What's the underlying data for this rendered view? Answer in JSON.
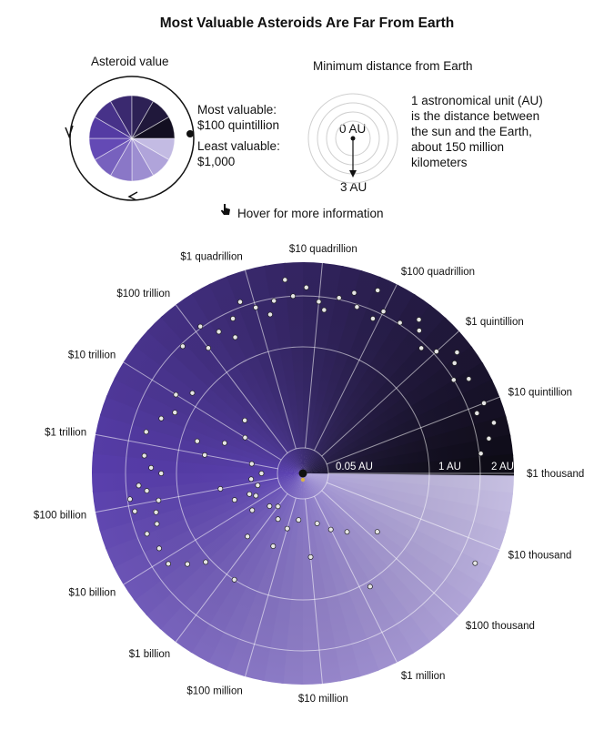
{
  "title": "Most Valuable Asteroids Are Far From Earth",
  "legend": {
    "value_title": "Asteroid value",
    "value_max_line1": "Most valuable:",
    "value_max_line2": "$100 quintillion",
    "value_min_line1": "Least valuable:",
    "value_min_line2": "$1,000",
    "distance_title": "Minimum distance from Earth",
    "distance_inner": "0 AU",
    "distance_outer": "3 AU",
    "au_note": "1 astronomical unit (AU) is the distance between the sun and the Earth, about 150 million kilometers"
  },
  "hover_hint": "Hover for more information",
  "hover_icon": "pointer-hand-icon",
  "colors": {
    "most_valuable": "#0d0b14",
    "mid": "#5a3fb0",
    "least_valuable": "#cdc6e8",
    "point_fill": "#e6e6e6",
    "earth": "#d9b24a"
  },
  "chart_data": {
    "type": "scatter",
    "coordinate_system": "polar",
    "angle_axis": {
      "quantity": "Asteroid value",
      "scale": "log",
      "tick_labels": [
        "$1 thousand",
        "$10 thousand",
        "$100 thousand",
        "$1 million",
        "$10 million",
        "$100 million",
        "$1 billion",
        "$10 billion",
        "$100 billion",
        "$1 trillion",
        "$10 trillion",
        "$100 trillion",
        "$1 quadrillion",
        "$10 quadrillion",
        "$100 quadrillion",
        "$1 quintillion",
        "$10 quintillion"
      ]
    },
    "radial_axis": {
      "quantity": "Minimum distance from Earth",
      "tick_labels": [
        "0.05 AU",
        "1 AU",
        "2 AU"
      ]
    },
    "grid": true,
    "points": [
      {
        "value_log10": 10.3,
        "distance_au": 0.3
      },
      {
        "value_log10": 10.5,
        "distance_au": 0.35
      },
      {
        "value_log10": 10.8,
        "distance_au": 0.25
      },
      {
        "value_log10": 11.2,
        "distance_au": 0.3
      },
      {
        "value_log10": 11.5,
        "distance_au": 0.2
      },
      {
        "value_log10": 12.0,
        "distance_au": 0.3
      },
      {
        "value_log10": 10.5,
        "distance_au": 0.5
      },
      {
        "value_log10": 11.0,
        "distance_au": 0.6
      },
      {
        "value_log10": 13.0,
        "distance_au": 0.45
      },
      {
        "value_log10": 12.5,
        "distance_au": 0.6
      },
      {
        "value_log10": 12.3,
        "distance_au": 0.85
      },
      {
        "value_log10": 12.0,
        "distance_au": 0.75
      },
      {
        "value_log10": 13.5,
        "distance_au": 0.55
      },
      {
        "value_log10": 11.0,
        "distance_au": 1.4
      },
      {
        "value_log10": 11.2,
        "distance_au": 1.6
      },
      {
        "value_log10": 10.8,
        "distance_au": 1.5
      },
      {
        "value_log10": 11.5,
        "distance_au": 1.3
      },
      {
        "value_log10": 10.5,
        "distance_au": 1.8
      },
      {
        "value_log10": 10.9,
        "distance_au": 1.9
      },
      {
        "value_log10": 11.3,
        "distance_au": 1.75
      },
      {
        "value_log10": 11.6,
        "distance_au": 1.5
      },
      {
        "value_log10": 10.2,
        "distance_au": 1.7
      },
      {
        "value_log10": 11.8,
        "distance_au": 1.65
      },
      {
        "value_log10": 10.6,
        "distance_au": 1.55
      },
      {
        "value_log10": 11.1,
        "distance_au": 1.95
      },
      {
        "value_log10": 12.2,
        "distance_au": 1.7
      },
      {
        "value_log10": 12.5,
        "distance_au": 1.5
      },
      {
        "value_log10": 12.7,
        "distance_au": 1.3
      },
      {
        "value_log10": 13.0,
        "distance_au": 1.45
      },
      {
        "value_log10": 13.2,
        "distance_au": 1.2
      },
      {
        "value_log10": 14.0,
        "distance_au": 1.6
      },
      {
        "value_log10": 14.3,
        "distance_au": 1.75
      },
      {
        "value_log10": 14.6,
        "distance_au": 1.85
      },
      {
        "value_log10": 15.0,
        "distance_au": 1.9
      },
      {
        "value_log10": 15.3,
        "distance_au": 1.95
      },
      {
        "value_log10": 15.6,
        "distance_au": 2.0
      },
      {
        "value_log10": 16.0,
        "distance_au": 1.9
      },
      {
        "value_log10": 16.3,
        "distance_au": 2.05
      },
      {
        "value_log10": 16.6,
        "distance_au": 1.95
      },
      {
        "value_log10": 17.0,
        "distance_au": 2.1
      },
      {
        "value_log10": 17.3,
        "distance_au": 2.05
      },
      {
        "value_log10": 17.6,
        "distance_au": 2.2
      },
      {
        "value_log10": 18.0,
        "distance_au": 2.1
      },
      {
        "value_log10": 18.3,
        "distance_au": 2.3
      },
      {
        "value_log10": 18.6,
        "distance_au": 2.4
      },
      {
        "value_log10": 19.0,
        "distance_au": 2.5
      },
      {
        "value_log10": 19.3,
        "distance_au": 2.6
      },
      {
        "value_log10": 14.5,
        "distance_au": 1.5
      },
      {
        "value_log10": 15.2,
        "distance_au": 1.7
      },
      {
        "value_log10": 16.1,
        "distance_au": 1.75
      },
      {
        "value_log10": 16.9,
        "distance_au": 1.85
      },
      {
        "value_log10": 17.8,
        "distance_au": 1.9
      },
      {
        "value_log10": 18.5,
        "distance_au": 2.0
      },
      {
        "value_log10": 19.1,
        "distance_au": 2.2
      },
      {
        "value_log10": 19.5,
        "distance_au": 2.35
      },
      {
        "value_log10": 14.8,
        "distance_au": 2.15
      },
      {
        "value_log10": 15.8,
        "distance_au": 2.25
      },
      {
        "value_log10": 16.5,
        "distance_au": 2.3
      },
      {
        "value_log10": 17.5,
        "distance_au": 2.45
      },
      {
        "value_log10": 18.2,
        "distance_au": 2.55
      },
      {
        "value_log10": 15.5,
        "distance_au": 2.5
      },
      {
        "value_log10": 16.8,
        "distance_au": 2.6
      },
      {
        "value_log10": 13.7,
        "distance_au": 1.95
      },
      {
        "value_log10": 14.1,
        "distance_au": 2.05
      },
      {
        "value_log10": 19.7,
        "distance_au": 2.05
      },
      {
        "value_log10": 6.0,
        "distance_au": 0.4
      },
      {
        "value_log10": 5.5,
        "distance_au": 0.5
      },
      {
        "value_log10": 6.5,
        "distance_au": 0.3
      },
      {
        "value_log10": 4.8,
        "distance_au": 0.7
      },
      {
        "value_log10": 5.8,
        "distance_au": 1.1
      },
      {
        "value_log10": 4.3,
        "distance_au": 2.5
      },
      {
        "value_log10": 7.5,
        "distance_au": 0.25
      },
      {
        "value_log10": 8.0,
        "distance_au": 0.35
      },
      {
        "value_log10": 8.6,
        "distance_au": 0.3
      },
      {
        "value_log10": 9.0,
        "distance_au": 0.2
      },
      {
        "value_log10": 9.4,
        "distance_au": 0.25
      },
      {
        "value_log10": 9.8,
        "distance_au": 0.4
      },
      {
        "value_log10": 7.0,
        "distance_au": 0.6
      },
      {
        "value_log10": 8.3,
        "distance_au": 0.55
      },
      {
        "value_log10": 9.2,
        "distance_au": 0.6
      },
      {
        "value_log10": 8.8,
        "distance_au": 1.0
      },
      {
        "value_log10": 9.5,
        "distance_au": 1.1
      },
      {
        "value_log10": 9.7,
        "distance_au": 1.4
      },
      {
        "value_log10": 9.9,
        "distance_au": 1.7
      }
    ]
  }
}
